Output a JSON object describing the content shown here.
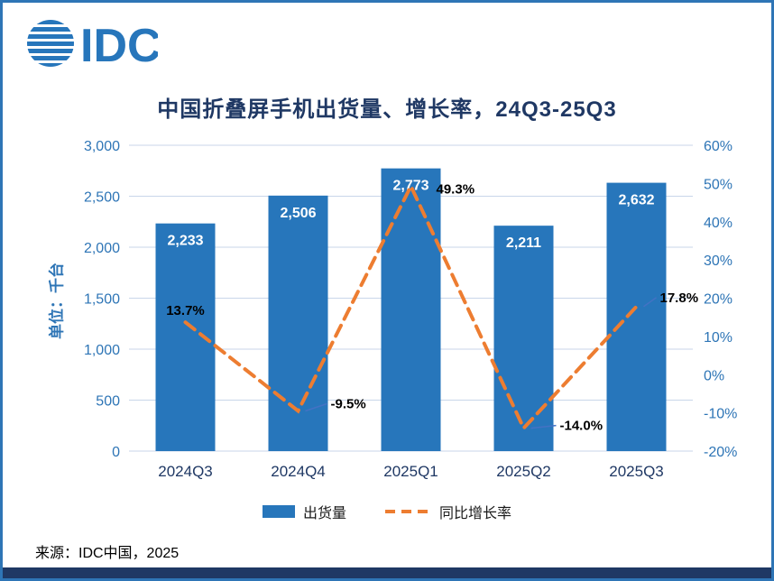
{
  "logo": {
    "text": "IDC"
  },
  "title": "中国折叠屏手机出货量、增长率，24Q3-25Q3",
  "axis_title_left": "单位：千台",
  "source": "来源：IDC中国，2025",
  "legend": {
    "shipments": "出货量",
    "growth": "同比增长率"
  },
  "colors": {
    "bar": "#2776BB",
    "line": "#ED7D31",
    "title": "#1F3864",
    "tick_label": "#2E75B6",
    "x_label": "#1F3864",
    "gridline": "#C9D6EA",
    "bar_label": "#FFFFFF",
    "point_label": "#000000",
    "leader": "#4472C4",
    "border": "#2E75B6",
    "footer": "#1F3864"
  },
  "chart_data": {
    "type": "bar+line",
    "title": "中国折叠屏手机出货量、增长率，24Q3-25Q3",
    "categories": [
      "2024Q3",
      "2024Q4",
      "2025Q1",
      "2025Q2",
      "2025Q3"
    ],
    "series": [
      {
        "name": "出货量",
        "type": "bar",
        "axis": "left",
        "values": [
          2233,
          2506,
          2773,
          2211,
          2632
        ],
        "labels": [
          "2,233",
          "2,506",
          "2,773",
          "2,211",
          "2,632"
        ]
      },
      {
        "name": "同比增长率",
        "type": "line",
        "axis": "right",
        "values": [
          13.7,
          -9.5,
          49.3,
          -14.0,
          17.8
        ],
        "labels": [
          "13.7%",
          "-9.5%",
          "49.3%",
          "-14.0%",
          "17.8%"
        ]
      }
    ],
    "left_axis": {
      "label": "单位：千台",
      "min": 0,
      "max": 3000,
      "step": 500,
      "tick_labels": [
        "0",
        "500",
        "1,000",
        "1,500",
        "2,000",
        "2,500",
        "3,000"
      ]
    },
    "right_axis": {
      "min": -20,
      "max": 60,
      "step": 10,
      "tick_labels": [
        "-20%",
        "-10%",
        "0%",
        "10%",
        "20%",
        "30%",
        "40%",
        "50%",
        "60%"
      ]
    },
    "grid": true,
    "legend_position": "bottom"
  }
}
